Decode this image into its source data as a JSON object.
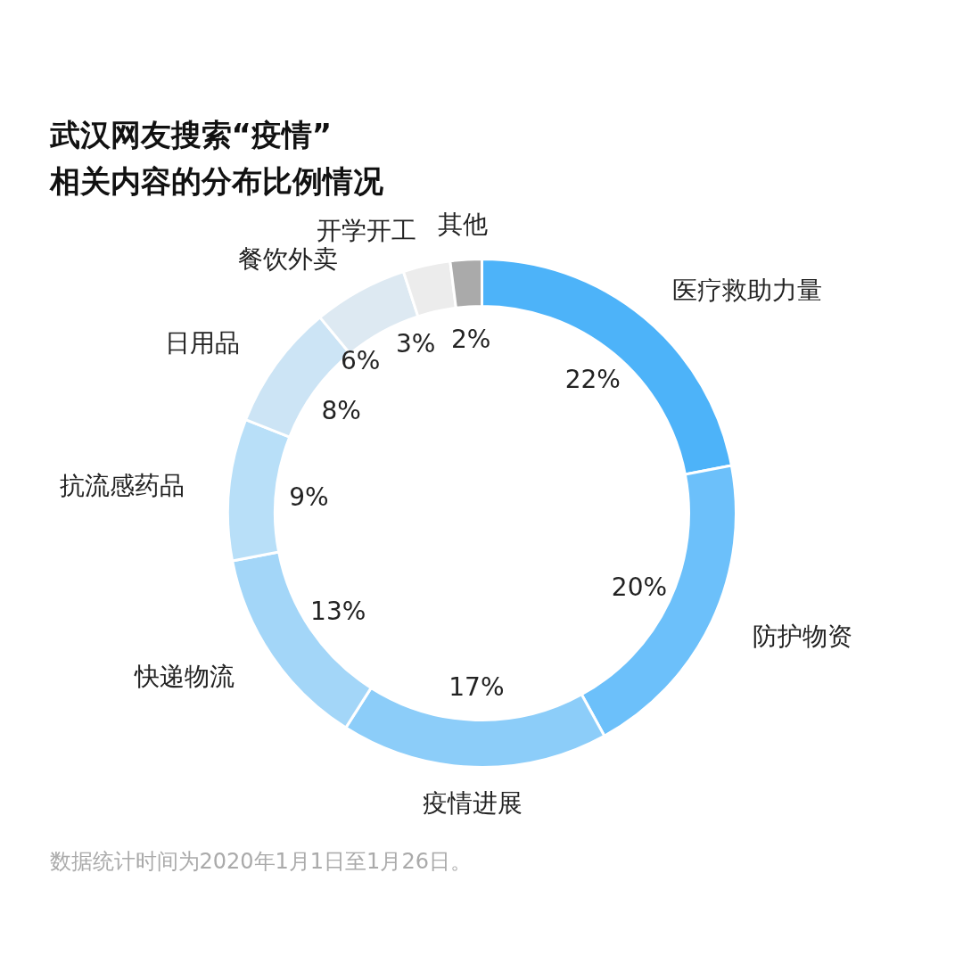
{
  "chart_data": {
    "type": "donut",
    "title": "武汉网友搜索“疫情”\n相关内容的分布比例情况",
    "categories": [
      "医疗救助力量",
      "防护物资",
      "疫情进展",
      "快递物流",
      "抗流感药品",
      "日用品",
      "餐饮外卖",
      "开学开工",
      "其他"
    ],
    "values": [
      22,
      20,
      17,
      13,
      9,
      8,
      6,
      3,
      2
    ],
    "colors": [
      "#4db3f9",
      "#6cc0fa",
      "#8ccdf9",
      "#a3d6f8",
      "#b8dff8",
      "#cce4f5",
      "#dde9f2",
      "#ececec",
      "#aaaaaa"
    ],
    "value_labels": [
      "22%",
      "20%",
      "17%",
      "13%",
      "9%",
      "8%",
      "6%",
      "3%",
      "2%"
    ],
    "annotations": [
      "数据统计时间为2020年1月1日至1月26日。"
    ]
  }
}
